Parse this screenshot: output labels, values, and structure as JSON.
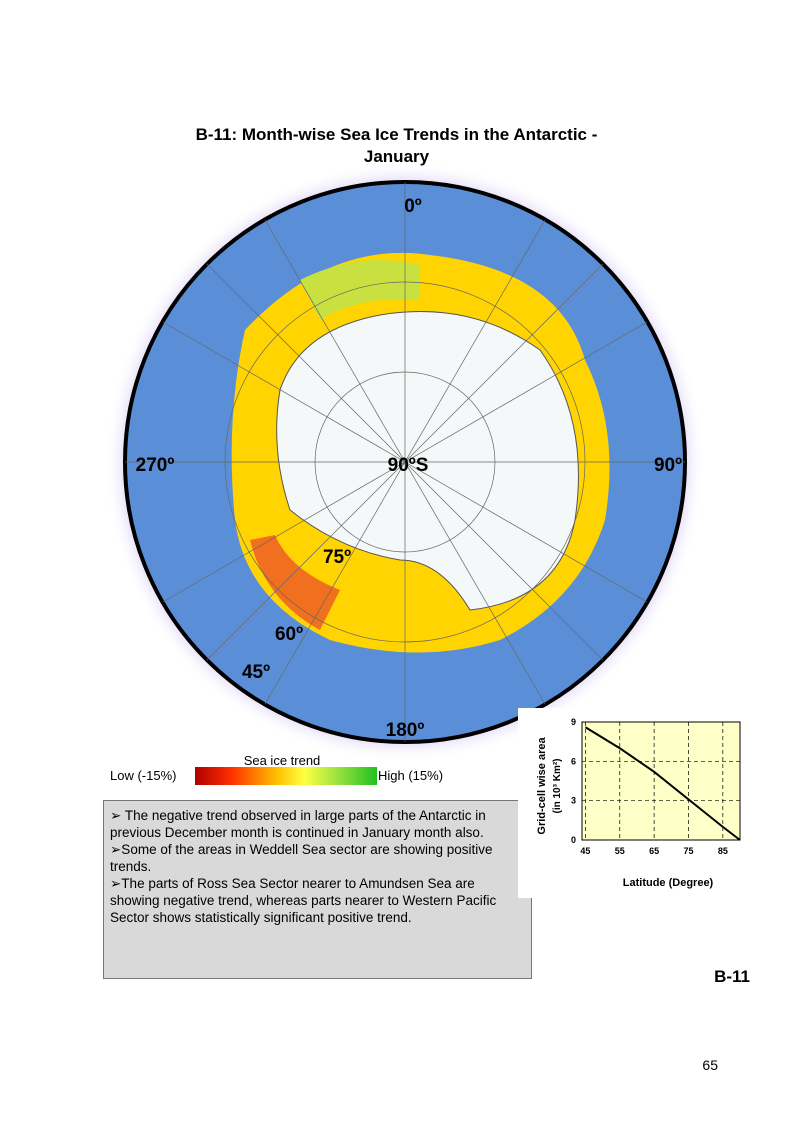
{
  "title": [
    "B-11: Month-wise Sea Ice Trends in the Antarctic -",
    "January"
  ],
  "map_labels": {
    "north": "0º",
    "center": "90ºS",
    "west": "270º",
    "east": "90º",
    "lat75": "75º",
    "lat60": "60º",
    "lat45": "45º",
    "south": "180º"
  },
  "legend": {
    "title": "Sea ice trend",
    "low": "Low (-15%)",
    "high": "High (15%)"
  },
  "notes": [
    "➢ The negative trend observed in large parts of the Antarctic in previous December month is continued in January month also.",
    "➢Some of the areas in Weddell Sea sector are showing positive trends.",
    "➢The parts of Ross Sea Sector nearer to Amundsen Sea are showing negative trend, whereas parts nearer to Western Pacific Sector shows statistically significant positive trend."
  ],
  "figure_label": "B-11",
  "page_number": "65",
  "chart_data": {
    "type": "line",
    "x_label": "Latitude (Degree)",
    "y_label": [
      "Grid-cell wise area",
      "(in 10³ Km²)"
    ],
    "x": [
      45,
      55,
      65,
      75,
      85,
      90
    ],
    "series": [
      {
        "name": null,
        "color": "#000000",
        "values": [
          8.6,
          7.0,
          5.2,
          3.1,
          1.0,
          0
        ]
      }
    ],
    "xlim": [
      44,
      90
    ],
    "ylim": [
      0,
      9
    ],
    "xticks": [
      45,
      55,
      65,
      75,
      85
    ],
    "yticks": [
      0,
      3,
      6,
      9
    ],
    "grid": true
  }
}
